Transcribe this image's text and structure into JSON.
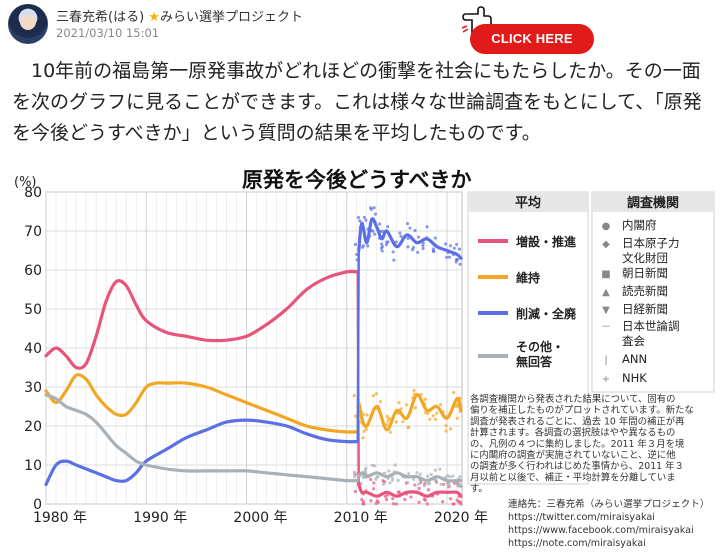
{
  "post": {
    "author": "三春充希(はる)",
    "badge": "みらい選挙プロジェクト",
    "date": "2021/03/10 15:01",
    "cta_label": "CLICK HERE",
    "body": "　10年前の福島第一原発事故がどれほどの衝撃を社会にもたらしたか。その一面を次のグラフに見ることができます。これは様々な世論調査をもとにして、「原発を今後どうすべきか」という質問の結果を平均したものです。"
  },
  "icons": {
    "hand": "pointing-hand-icon",
    "star": "star-icon",
    "avatar": "avatar"
  },
  "colors": {
    "increase": "#e8547a",
    "maintain": "#f2a622",
    "decrease": "#5b6fe6",
    "other": "#a9b1b7",
    "cta": "#e11a1a",
    "grid": "#cfcfcf"
  },
  "chart_data": {
    "type": "line",
    "title": "原発を今後どうすべきか",
    "ylabel": "(%)",
    "xlim": [
      1980,
      2021.5
    ],
    "ylim": [
      0,
      80
    ],
    "yticks": [
      0,
      10,
      20,
      30,
      40,
      50,
      60,
      70,
      80
    ],
    "xticks": [
      {
        "value": 1980,
        "label": "1980 年"
      },
      {
        "value": 1990,
        "label": "1990 年"
      },
      {
        "value": 2000,
        "label": "2000 年"
      },
      {
        "value": 2010,
        "label": "2010 年"
      },
      {
        "value": 2020,
        "label": "2020 年"
      }
    ],
    "grid": true,
    "break_year": 2011.2,
    "legend_title": "平均",
    "legend_position": "right",
    "series": [
      {
        "name": "増設・推進",
        "color": "#e8547a",
        "x": [
          1980,
          1981,
          1982,
          1983,
          1984,
          1985,
          1986,
          1987,
          1988,
          1989,
          1990,
          1992,
          1994,
          1996,
          1998,
          2000,
          2002,
          2004,
          2006,
          2008,
          2010,
          2011.1,
          2011.2,
          2011.5,
          2012,
          2013,
          2014,
          2015,
          2016,
          2017,
          2018,
          2019,
          2020,
          2021,
          2021.4
        ],
        "y": [
          38,
          40,
          38,
          35,
          36,
          43,
          52,
          57,
          56,
          51,
          47,
          44,
          43,
          42,
          42,
          43,
          46,
          50,
          55,
          58,
          59.5,
          59.5,
          5,
          3,
          3,
          2,
          3,
          2,
          3,
          3,
          2,
          3,
          3,
          3,
          2
        ]
      },
      {
        "name": "維持",
        "color": "#f2a622",
        "x": [
          1980,
          1981,
          1982,
          1983,
          1984,
          1985,
          1986,
          1987,
          1988,
          1989,
          1990,
          1991,
          1992,
          1994,
          1996,
          1998,
          2000,
          2002,
          2004,
          2006,
          2008,
          2010,
          2011.1,
          2011.2,
          2011.5,
          2012,
          2013,
          2014,
          2015,
          2016,
          2017,
          2018,
          2019,
          2020,
          2021,
          2021.4
        ],
        "y": [
          29,
          26,
          29,
          33,
          32,
          28,
          25,
          23,
          23,
          26,
          30,
          31,
          31,
          31,
          30,
          28,
          26,
          24,
          22,
          20,
          19,
          18.5,
          18.5,
          26,
          22,
          20,
          25,
          19,
          24,
          22,
          28,
          24,
          25,
          22,
          27,
          24
        ]
      },
      {
        "name": "削減・全廃",
        "color": "#5b6fe6",
        "x": [
          1980,
          1981,
          1982,
          1983,
          1984,
          1985,
          1986,
          1987,
          1988,
          1989,
          1990,
          1992,
          1994,
          1996,
          1998,
          2000,
          2002,
          2004,
          2006,
          2008,
          2010,
          2011.1,
          2011.2,
          2011.5,
          2012,
          2012.5,
          2013,
          2013.5,
          2014,
          2015,
          2016,
          2017,
          2018,
          2019,
          2020,
          2021,
          2021.4
        ],
        "y": [
          5,
          10,
          11,
          10,
          9,
          8,
          7,
          6,
          6,
          8,
          11,
          14,
          17,
          19,
          21,
          21.5,
          21,
          20,
          18,
          16.5,
          16,
          16,
          65,
          72,
          67,
          73,
          71,
          68,
          70,
          66,
          69,
          67,
          68,
          66,
          65,
          64,
          63
        ]
      },
      {
        "name": "その他・無回答",
        "color": "#a9b1b7",
        "x": [
          1980,
          1981,
          1982,
          1983,
          1984,
          1985,
          1986,
          1987,
          1988,
          1989,
          1990,
          1992,
          1994,
          1996,
          1998,
          2000,
          2002,
          2004,
          2006,
          2008,
          2010,
          2011.1,
          2011.2,
          2011.5,
          2012,
          2013,
          2014,
          2015,
          2016,
          2017,
          2018,
          2019,
          2020,
          2021,
          2021.4
        ],
        "y": [
          28,
          27,
          25,
          24,
          23,
          21,
          18,
          15,
          13,
          11,
          10,
          9,
          8.5,
          8.5,
          8.5,
          8.5,
          8,
          7.5,
          7,
          6.5,
          6,
          6,
          7,
          8,
          7,
          8,
          7,
          8,
          7,
          7,
          6,
          7,
          6,
          6,
          6
        ]
      }
    ],
    "legend_names_display": [
      "増設・推進",
      "維持",
      "削減・全廃",
      "その他・",
      "無回答"
    ],
    "agencies_title": "調査機関",
    "agencies": [
      {
        "marker": "●",
        "name": "内閣府"
      },
      {
        "marker": "◆",
        "name": "日本原子力"
      },
      {
        "marker": "",
        "name": "文化財団"
      },
      {
        "marker": "■",
        "name": "朝日新聞"
      },
      {
        "marker": "▲",
        "name": "読売新聞"
      },
      {
        "marker": "▼",
        "name": "日経新聞"
      },
      {
        "marker": "－",
        "name": "日本世論調"
      },
      {
        "marker": "",
        "name": "査会"
      },
      {
        "marker": "|",
        "name": "ANN"
      },
      {
        "marker": "+",
        "name": "NHK"
      }
    ],
    "note": [
      "各調査機関から発表された結果について、固有の",
      "偏りを補正したものがプロットされています。新たな",
      "調査が発表されるごとに、過去 10 年間の補正が再",
      "計算されます。各調査の選択肢はやや異なるもの",
      "の、凡例の４つに集約しました。2011 年３月を境",
      "に内閣府の調査が実施されていないこと、逆に他",
      "の調査が多く行われはじめた事情から、2011 年３",
      "月以前と以後で、補正・平均計算を分離していま",
      "す。"
    ],
    "credits": [
      "連絡先：三春充希（みらい選挙プロジェクト）",
      "https://twitter.com/miraisyakai",
      "https://www.facebook.com/miraisyakai",
      "https://note.com/miraisyakai"
    ]
  }
}
